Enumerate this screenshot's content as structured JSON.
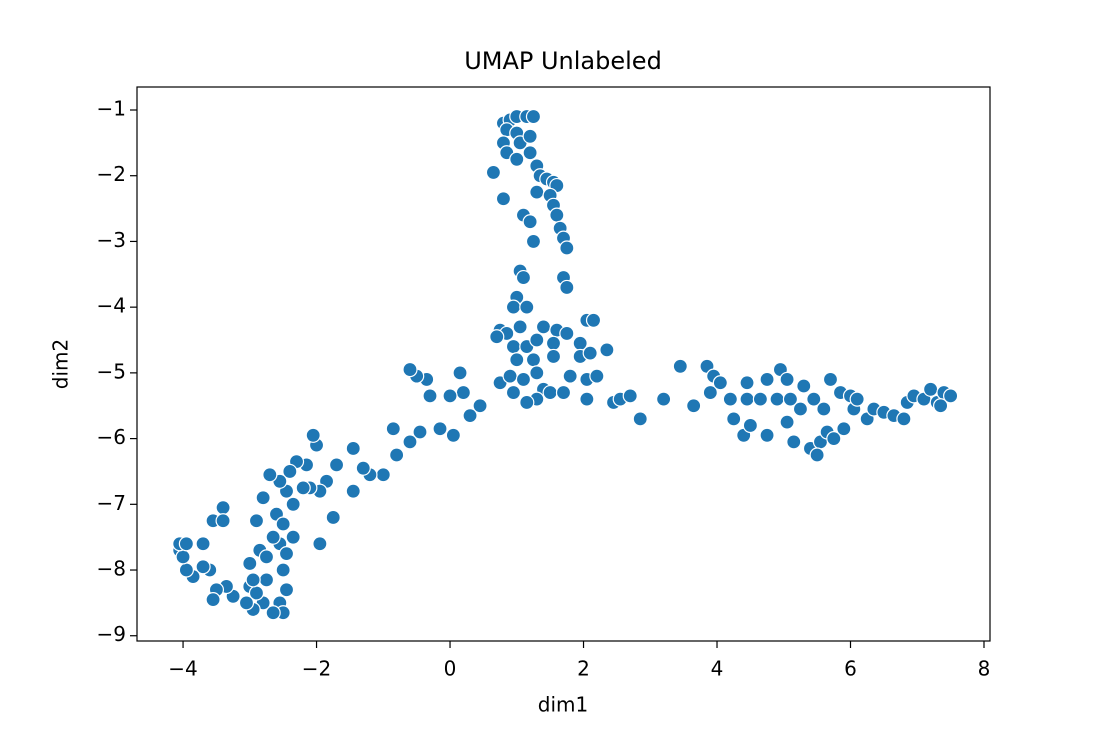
{
  "chart_data": {
    "type": "scatter",
    "title": "UMAP Unlabeled",
    "xlabel": "dim1",
    "ylabel": "dim2",
    "color": "#1f77b4",
    "xlim": [
      -4.69,
      8.09
    ],
    "ylim": [
      -9.08,
      -0.65
    ],
    "xticks": [
      {
        "value": -4,
        "label": "−4"
      },
      {
        "value": -2,
        "label": "−2"
      },
      0,
      2,
      4,
      6,
      8
    ],
    "yticks": [
      {
        "value": -9,
        "label": "−9"
      },
      {
        "value": -8,
        "label": "−8"
      },
      {
        "value": -7,
        "label": "−7"
      },
      {
        "value": -6,
        "label": "−6"
      },
      {
        "value": -5,
        "label": "−5"
      },
      {
        "value": -4,
        "label": "−4"
      },
      {
        "value": -3,
        "label": "−3"
      },
      {
        "value": -2,
        "label": "−2"
      },
      {
        "value": -1,
        "label": "−1"
      }
    ],
    "x": [
      0.8,
      0.9,
      1.0,
      1.15,
      1.25,
      0.85,
      1.0,
      0.8,
      1.05,
      1.2,
      0.85,
      1.0,
      1.2,
      1.3,
      0.65,
      1.35,
      1.45,
      1.55,
      1.6,
      1.3,
      0.8,
      1.5,
      1.55,
      1.6,
      1.1,
      1.2,
      1.65,
      1.7,
      1.25,
      1.75,
      1.05,
      1.1,
      1.7,
      1.75,
      1.0,
      0.95,
      1.15,
      0.75,
      0.85,
      0.7,
      1.05,
      1.4,
      1.6,
      1.75,
      2.05,
      2.15,
      0.95,
      1.15,
      1.3,
      1.55,
      1.95,
      2.35,
      1.0,
      1.25,
      1.55,
      1.95,
      2.1,
      0.75,
      0.9,
      1.1,
      1.3,
      1.8,
      2.05,
      2.2,
      0.95,
      1.4,
      1.5,
      1.3,
      1.15,
      1.7,
      2.05,
      2.45,
      2.55,
      2.7,
      2.85,
      3.2,
      3.45,
      3.65,
      3.85,
      3.9,
      3.95,
      4.05,
      4.2,
      4.25,
      4.4,
      4.45,
      4.5,
      4.45,
      4.65,
      4.75,
      4.75,
      4.9,
      4.95,
      5.05,
      5.05,
      5.1,
      5.15,
      5.25,
      5.3,
      5.4,
      5.45,
      5.55,
      5.6,
      5.65,
      5.5,
      5.7,
      5.75,
      5.85,
      5.9,
      6.0,
      6.05,
      6.1,
      6.25,
      6.35,
      6.5,
      6.65,
      6.8,
      6.85,
      6.95,
      7.1,
      7.2,
      7.3,
      7.4,
      7.5,
      7.35,
      0.45,
      0.3,
      0.2,
      0.15,
      0.0,
      -0.3,
      -0.35,
      -0.5,
      -0.6,
      -0.15,
      0.05,
      -0.45,
      -0.6,
      -0.8,
      -0.85,
      -1.0,
      -1.2,
      -1.3,
      -1.45,
      -1.45,
      -1.7,
      -1.75,
      -1.85,
      -1.95,
      -2.0,
      -2.05,
      -2.1,
      -1.95,
      -2.15,
      -2.2,
      -2.3,
      -2.35,
      -2.4,
      -2.45,
      -2.55,
      -2.6,
      -2.7,
      -2.5,
      -2.55,
      -2.35,
      -2.45,
      -2.65,
      -2.8,
      -2.9,
      -2.85,
      -2.75,
      -2.5,
      -2.45,
      -2.55,
      -2.5,
      -2.65,
      -2.8,
      -2.95,
      -3.0,
      -2.9,
      -2.75,
      -3.05,
      -3.25,
      -3.35,
      -3.5,
      -3.6,
      -3.7,
      -3.85,
      -3.95,
      -4.05,
      -4.0,
      -4.05,
      -3.95,
      -3.7,
      -3.55,
      -3.4,
      -3.4,
      -3.0,
      -2.95,
      -3.55
    ],
    "values": [
      -1.2,
      -1.15,
      -1.1,
      -1.1,
      -1.1,
      -1.3,
      -1.35,
      -1.5,
      -1.5,
      -1.4,
      -1.65,
      -1.75,
      -1.65,
      -1.85,
      -1.95,
      -2.0,
      -2.05,
      -2.1,
      -2.15,
      -2.25,
      -2.35,
      -2.3,
      -2.45,
      -2.6,
      -2.6,
      -2.7,
      -2.8,
      -2.95,
      -3.0,
      -3.1,
      -3.45,
      -3.55,
      -3.55,
      -3.7,
      -3.85,
      -4.0,
      -4.0,
      -4.35,
      -4.4,
      -4.45,
      -4.3,
      -4.3,
      -4.35,
      -4.4,
      -4.2,
      -4.2,
      -4.6,
      -4.6,
      -4.5,
      -4.55,
      -4.55,
      -4.65,
      -4.8,
      -4.8,
      -4.75,
      -4.75,
      -4.7,
      -5.15,
      -5.05,
      -5.1,
      -5.0,
      -5.05,
      -5.1,
      -5.05,
      -5.3,
      -5.25,
      -5.3,
      -5.4,
      -5.45,
      -5.3,
      -5.4,
      -5.45,
      -5.4,
      -5.35,
      -5.7,
      -5.4,
      -4.9,
      -5.5,
      -4.9,
      -5.3,
      -5.05,
      -5.15,
      -5.4,
      -5.7,
      -5.95,
      -5.4,
      -5.8,
      -5.15,
      -5.4,
      -5.1,
      -5.95,
      -5.4,
      -4.95,
      -5.1,
      -5.75,
      -5.4,
      -6.05,
      -5.55,
      -5.2,
      -6.15,
      -5.4,
      -6.05,
      -5.55,
      -5.9,
      -6.25,
      -5.1,
      -6.0,
      -5.3,
      -5.85,
      -5.35,
      -5.55,
      -5.4,
      -5.7,
      -5.55,
      -5.6,
      -5.65,
      -5.7,
      -5.45,
      -5.35,
      -5.4,
      -5.25,
      -5.45,
      -5.3,
      -5.35,
      -5.5,
      -5.5,
      -5.65,
      -5.3,
      -5.0,
      -5.35,
      -5.35,
      -5.1,
      -5.05,
      -4.95,
      -5.85,
      -5.95,
      -5.9,
      -6.05,
      -6.25,
      -5.85,
      -6.55,
      -6.55,
      -6.45,
      -6.8,
      -6.15,
      -6.4,
      -7.2,
      -6.65,
      -6.8,
      -6.1,
      -5.95,
      -6.75,
      -7.6,
      -6.4,
      -6.75,
      -6.35,
      -7.0,
      -6.5,
      -6.8,
      -6.65,
      -7.15,
      -6.55,
      -7.3,
      -7.6,
      -7.5,
      -7.75,
      -7.5,
      -6.9,
      -7.25,
      -7.7,
      -7.8,
      -8.0,
      -8.3,
      -8.5,
      -8.65,
      -8.65,
      -8.5,
      -8.6,
      -8.25,
      -8.35,
      -8.15,
      -8.5,
      -8.4,
      -8.25,
      -8.3,
      -8.0,
      -7.95,
      -8.1,
      -8.0,
      -7.7,
      -7.8,
      -7.6,
      -7.6,
      -7.6,
      -7.25,
      -7.05,
      -7.25,
      -7.9,
      -8.15,
      -8.45
    ]
  }
}
